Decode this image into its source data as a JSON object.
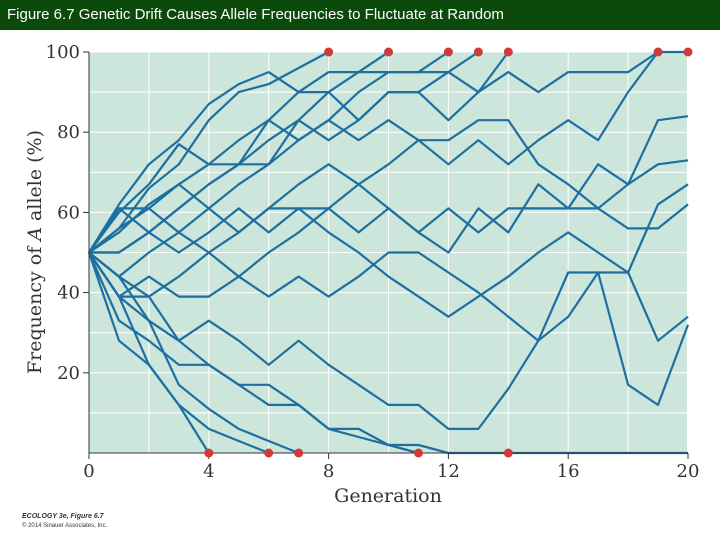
{
  "header": {
    "title": "Figure 6.7 Genetic Drift Causes Allele Frequencies to Fluctuate at Random"
  },
  "chart_data": {
    "type": "line",
    "xlabel": "Generation",
    "ylabel": "Frequency of A allele (%)",
    "xlim": [
      0,
      20
    ],
    "ylim": [
      0,
      100
    ],
    "xticks": [
      0,
      4,
      8,
      12,
      16,
      20
    ],
    "yticks": [
      20,
      40,
      60,
      80,
      100
    ],
    "grid": true,
    "colors": {
      "background": "#cce6dc",
      "line": "#1d6fa0",
      "fixation_marker": "#d13a3a",
      "grid": "#ffffff",
      "title_bar": "#0b4a0b"
    },
    "series": [
      {
        "x": [
          0,
          1,
          2,
          3,
          4,
          5,
          6,
          7,
          8,
          9,
          10,
          11,
          12,
          13,
          14,
          15,
          16,
          17,
          18,
          19,
          20
        ],
        "y": [
          50,
          62,
          72,
          78,
          87,
          92,
          95,
          90,
          90,
          95,
          95,
          95,
          95,
          90,
          95,
          90,
          95,
          95,
          95,
          100,
          100
        ]
      },
      {
        "x": [
          0,
          1,
          2,
          3,
          4,
          5,
          6,
          7,
          8
        ],
        "y": [
          50,
          56,
          66,
          72,
          83,
          90,
          92,
          96,
          100
        ]
      },
      {
        "x": [
          0,
          1,
          2,
          3,
          4,
          5,
          6,
          7,
          8,
          9,
          10
        ],
        "y": [
          50,
          60,
          67,
          77,
          72,
          78,
          83,
          90,
          95,
          95,
          100
        ]
      },
      {
        "x": [
          0,
          1,
          2,
          3,
          4,
          5,
          6,
          7,
          8,
          9,
          10,
          11,
          12
        ],
        "y": [
          50,
          55,
          62,
          67,
          72,
          72,
          83,
          78,
          83,
          90,
          95,
          95,
          100
        ]
      },
      {
        "x": [
          0,
          1,
          2,
          3,
          4,
          5,
          6,
          7,
          8,
          9,
          10,
          11,
          12,
          13
        ],
        "y": [
          50,
          50,
          55,
          61,
          67,
          72,
          78,
          83,
          78,
          83,
          90,
          90,
          95,
          100
        ]
      },
      {
        "x": [
          0,
          1,
          2,
          3,
          4,
          5,
          6,
          7,
          8,
          9,
          10,
          11,
          12,
          13,
          14
        ],
        "y": [
          50,
          44,
          50,
          55,
          61,
          67,
          72,
          83,
          90,
          83,
          90,
          90,
          83,
          90,
          100
        ]
      },
      {
        "x": [
          0,
          1,
          2,
          3,
          4,
          5,
          6,
          7,
          8,
          9,
          10,
          11,
          12,
          13,
          14,
          15,
          16,
          17,
          18,
          19
        ],
        "y": [
          50,
          61,
          55,
          61,
          67,
          72,
          72,
          78,
          83,
          78,
          83,
          78,
          72,
          78,
          72,
          78,
          83,
          78,
          90,
          100
        ]
      },
      {
        "x": [
          0,
          1,
          2,
          3,
          4,
          5,
          6,
          7,
          8,
          9,
          10,
          11,
          12,
          13,
          14,
          15,
          16,
          17,
          18,
          19,
          20
        ],
        "y": [
          50,
          44,
          39,
          44,
          50,
          55,
          61,
          67,
          72,
          67,
          72,
          78,
          78,
          83,
          83,
          72,
          67,
          61,
          67,
          83,
          84
        ]
      },
      {
        "x": [
          0,
          1,
          2,
          3,
          4,
          5,
          6,
          7,
          8,
          9,
          10,
          11,
          12,
          13,
          14,
          15,
          16,
          17,
          18,
          19,
          20
        ],
        "y": [
          50,
          50,
          55,
          50,
          55,
          61,
          55,
          61,
          61,
          55,
          61,
          55,
          50,
          61,
          55,
          67,
          61,
          72,
          67,
          72,
          73
        ]
      },
      {
        "x": [
          0,
          1,
          2,
          3,
          4,
          5,
          6,
          7,
          8,
          9,
          10,
          11,
          12,
          13,
          14,
          15,
          16,
          17,
          18,
          19,
          20
        ],
        "y": [
          50,
          56,
          61,
          55,
          50,
          44,
          50,
          55,
          61,
          67,
          61,
          55,
          61,
          55,
          61,
          61,
          61,
          61,
          56,
          56,
          62
        ]
      },
      {
        "x": [
          0,
          1,
          2,
          3,
          4,
          5,
          6,
          7,
          8,
          9,
          10,
          11,
          12,
          13,
          14,
          15,
          16,
          17,
          18,
          19,
          20
        ],
        "y": [
          50,
          61,
          61,
          67,
          61,
          55,
          61,
          61,
          55,
          50,
          44,
          39,
          34,
          39,
          44,
          50,
          55,
          50,
          45,
          62,
          67
        ]
      },
      {
        "x": [
          0,
          1,
          2,
          3,
          4,
          5,
          6,
          7,
          8,
          9,
          10,
          11,
          12,
          13,
          14,
          15,
          16,
          17,
          18,
          19,
          20
        ],
        "y": [
          50,
          39,
          44,
          39,
          39,
          44,
          39,
          44,
          39,
          44,
          50,
          50,
          45,
          40,
          34,
          28,
          34,
          45,
          45,
          28,
          34
        ]
      },
      {
        "x": [
          0,
          1,
          2,
          3,
          4,
          5,
          6,
          7,
          8,
          9,
          10,
          11,
          12,
          13,
          14,
          15,
          16,
          17,
          18,
          19,
          20
        ],
        "y": [
          50,
          39,
          33,
          28,
          33,
          28,
          22,
          28,
          22,
          17,
          12,
          12,
          6,
          6,
          16,
          28,
          45,
          45,
          17,
          12,
          32
        ]
      },
      {
        "x": [
          0,
          1,
          2,
          3,
          4,
          5,
          6,
          7,
          8,
          9,
          10,
          11,
          12,
          13,
          14,
          15,
          16,
          17,
          18,
          19,
          20
        ],
        "y": [
          50,
          33,
          28,
          22,
          22,
          17,
          12,
          12,
          6,
          6,
          2,
          2,
          0,
          0,
          0,
          0,
          0,
          0,
          0,
          0,
          0
        ]
      },
      {
        "x": [
          0,
          1,
          2,
          3,
          4
        ],
        "y": [
          50,
          39,
          22,
          12,
          0
        ]
      },
      {
        "x": [
          0,
          1,
          2,
          3,
          4,
          5,
          6
        ],
        "y": [
          50,
          28,
          22,
          12,
          6,
          3,
          0
        ]
      },
      {
        "x": [
          0,
          1,
          2,
          3,
          4,
          5,
          6,
          7
        ],
        "y": [
          50,
          44,
          33,
          17,
          11,
          6,
          3,
          0
        ]
      },
      {
        "x": [
          0,
          1,
          2,
          3,
          4,
          5,
          6,
          7,
          8,
          9,
          10,
          11
        ],
        "y": [
          50,
          39,
          39,
          28,
          22,
          17,
          17,
          12,
          6,
          4,
          2,
          0
        ]
      }
    ],
    "fixation_markers": [
      {
        "x": 4,
        "y": 0
      },
      {
        "x": 6,
        "y": 0
      },
      {
        "x": 7,
        "y": 0
      },
      {
        "x": 11,
        "y": 0
      },
      {
        "x": 14,
        "y": 0
      },
      {
        "x": 8,
        "y": 100
      },
      {
        "x": 10,
        "y": 100
      },
      {
        "x": 12,
        "y": 100
      },
      {
        "x": 13,
        "y": 100
      },
      {
        "x": 14,
        "y": 100
      },
      {
        "x": 19,
        "y": 100
      },
      {
        "x": 20,
        "y": 100
      }
    ]
  },
  "credits": {
    "main": "ECOLOGY 3e, Figure 6.7",
    "sub": "© 2014 Sinauer Associates, Inc."
  }
}
